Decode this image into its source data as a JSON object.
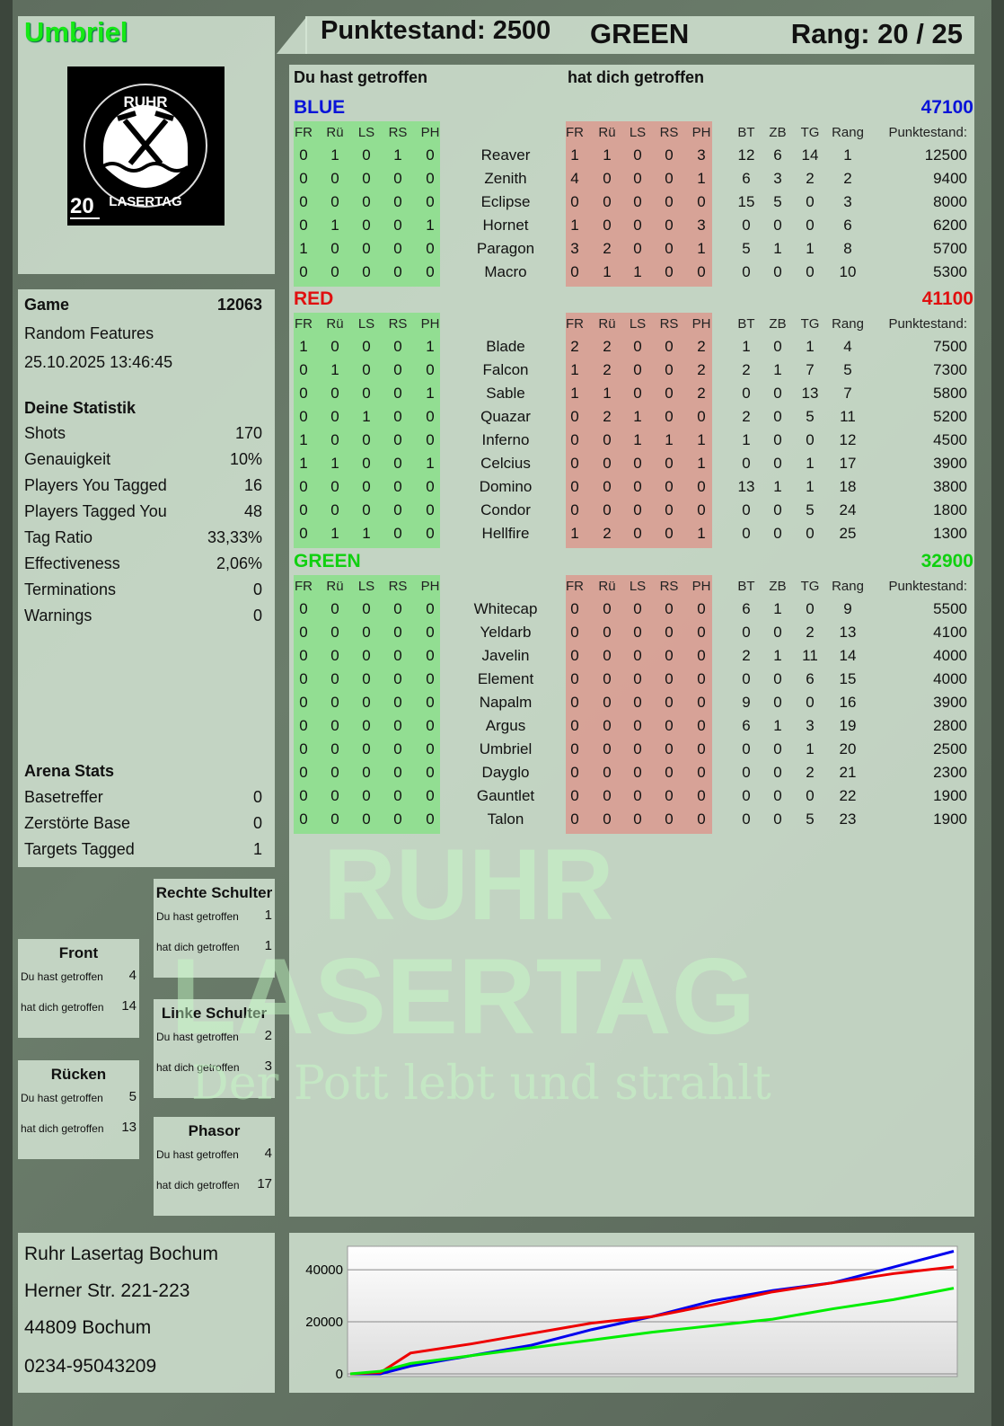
{
  "player": {
    "name": "Umbriel",
    "logo_text": [
      "RUHR",
      "LASERTAG"
    ],
    "logo_number": "20"
  },
  "header": {
    "score_label": "Punktestand: 2500",
    "team": "GREEN",
    "rank_label": "Rang: 20 / 25"
  },
  "game": {
    "label": "Game",
    "id": "12063",
    "mode": "Random Features",
    "datetime": "25.10.2025 13:46:45"
  },
  "stats": {
    "title": "Deine Statistik",
    "items": [
      {
        "label": "Shots",
        "value": "170"
      },
      {
        "label": "Genauigkeit",
        "value": "10%"
      },
      {
        "label": "Players You Tagged",
        "value": "16"
      },
      {
        "label": "Players Tagged You",
        "value": "48"
      },
      {
        "label": "Tag Ratio",
        "value": "33,33%"
      },
      {
        "label": "Effectiveness",
        "value": "2,06%"
      },
      {
        "label": "Terminations",
        "value": "0"
      },
      {
        "label": "Warnings",
        "value": "0"
      }
    ]
  },
  "arena": {
    "title": "Arena Stats",
    "items": [
      {
        "label": "Basetreffer",
        "value": "0"
      },
      {
        "label": "Zerstörte Base",
        "value": "0"
      },
      {
        "label": "Targets Tagged",
        "value": "1"
      }
    ]
  },
  "hits": {
    "you_hit_label": "Du hast getroffen",
    "hit_you_label": "hat dich getroffen",
    "zones": [
      {
        "name": "Rechte Schulter",
        "you_hit": "1",
        "hit_you": "1"
      },
      {
        "name": "Front",
        "you_hit": "4",
        "hit_you": "14"
      },
      {
        "name": "Linke Schulter",
        "you_hit": "2",
        "hit_you": "3"
      },
      {
        "name": "Rücken",
        "you_hit": "5",
        "hit_you": "13"
      },
      {
        "name": "Phasor",
        "you_hit": "4",
        "hit_you": "17"
      }
    ]
  },
  "address": [
    "Ruhr Lasertag Bochum",
    "Herner Str. 221-223",
    "44809 Bochum",
    "0234-95043209"
  ],
  "table": {
    "you_hit_header": "Du hast getroffen",
    "hit_you_header": "hat dich getroffen",
    "zone_cols": [
      "FR",
      "Rü",
      "LS",
      "RS",
      "PH"
    ],
    "stat_cols": [
      "BT",
      "ZB",
      "TG",
      "Rang"
    ],
    "score_col": "Punktestand:",
    "teams": [
      {
        "name": "BLUE",
        "total": "47100",
        "color": "#0a14d8",
        "players": [
          {
            "name": "Reaver",
            "you": [
              0,
              1,
              0,
              1,
              0
            ],
            "them": [
              1,
              1,
              0,
              0,
              3
            ],
            "stats": [
              12,
              6,
              14,
              1
            ],
            "score": 12500
          },
          {
            "name": "Zenith",
            "you": [
              0,
              0,
              0,
              0,
              0
            ],
            "them": [
              4,
              0,
              0,
              0,
              1
            ],
            "stats": [
              6,
              3,
              2,
              2
            ],
            "score": 9400
          },
          {
            "name": "Eclipse",
            "you": [
              0,
              0,
              0,
              0,
              0
            ],
            "them": [
              0,
              0,
              0,
              0,
              0
            ],
            "stats": [
              15,
              5,
              0,
              3
            ],
            "score": 8000
          },
          {
            "name": "Hornet",
            "you": [
              0,
              1,
              0,
              0,
              1
            ],
            "them": [
              1,
              0,
              0,
              0,
              3
            ],
            "stats": [
              0,
              0,
              0,
              6
            ],
            "score": 6200
          },
          {
            "name": "Paragon",
            "you": [
              1,
              0,
              0,
              0,
              0
            ],
            "them": [
              3,
              2,
              0,
              0,
              1
            ],
            "stats": [
              5,
              1,
              1,
              8
            ],
            "score": 5700
          },
          {
            "name": "Macro",
            "you": [
              0,
              0,
              0,
              0,
              0
            ],
            "them": [
              0,
              1,
              1,
              0,
              0
            ],
            "stats": [
              0,
              0,
              0,
              10
            ],
            "score": 5300
          }
        ]
      },
      {
        "name": "RED",
        "total": "41100",
        "color": "#e01010",
        "players": [
          {
            "name": "Blade",
            "you": [
              1,
              0,
              0,
              0,
              1
            ],
            "them": [
              2,
              2,
              0,
              0,
              2
            ],
            "stats": [
              1,
              0,
              1,
              4
            ],
            "score": 7500
          },
          {
            "name": "Falcon",
            "you": [
              0,
              1,
              0,
              0,
              0
            ],
            "them": [
              1,
              2,
              0,
              0,
              2
            ],
            "stats": [
              2,
              1,
              7,
              5
            ],
            "score": 7300
          },
          {
            "name": "Sable",
            "you": [
              0,
              0,
              0,
              0,
              1
            ],
            "them": [
              1,
              1,
              0,
              0,
              2
            ],
            "stats": [
              0,
              0,
              13,
              7
            ],
            "score": 5800
          },
          {
            "name": "Quazar",
            "you": [
              0,
              0,
              1,
              0,
              0
            ],
            "them": [
              0,
              2,
              1,
              0,
              0
            ],
            "stats": [
              2,
              0,
              5,
              11
            ],
            "score": 5200
          },
          {
            "name": "Inferno",
            "you": [
              1,
              0,
              0,
              0,
              0
            ],
            "them": [
              0,
              0,
              1,
              1,
              1
            ],
            "stats": [
              1,
              0,
              0,
              12
            ],
            "score": 4500
          },
          {
            "name": "Celcius",
            "you": [
              1,
              1,
              0,
              0,
              1
            ],
            "them": [
              0,
              0,
              0,
              0,
              1
            ],
            "stats": [
              0,
              0,
              1,
              17
            ],
            "score": 3900
          },
          {
            "name": "Domino",
            "you": [
              0,
              0,
              0,
              0,
              0
            ],
            "them": [
              0,
              0,
              0,
              0,
              0
            ],
            "stats": [
              13,
              1,
              1,
              18
            ],
            "score": 3800
          },
          {
            "name": "Condor",
            "you": [
              0,
              0,
              0,
              0,
              0
            ],
            "them": [
              0,
              0,
              0,
              0,
              0
            ],
            "stats": [
              0,
              0,
              5,
              24
            ],
            "score": 1800
          },
          {
            "name": "Hellfire",
            "you": [
              0,
              1,
              1,
              0,
              0
            ],
            "them": [
              1,
              2,
              0,
              0,
              1
            ],
            "stats": [
              0,
              0,
              0,
              25
            ],
            "score": 1300
          }
        ]
      },
      {
        "name": "GREEN",
        "total": "32900",
        "color": "#10d010",
        "players": [
          {
            "name": "Whitecap",
            "you": [
              0,
              0,
              0,
              0,
              0
            ],
            "them": [
              0,
              0,
              0,
              0,
              0
            ],
            "stats": [
              6,
              1,
              0,
              9
            ],
            "score": 5500
          },
          {
            "name": "Yeldarb",
            "you": [
              0,
              0,
              0,
              0,
              0
            ],
            "them": [
              0,
              0,
              0,
              0,
              0
            ],
            "stats": [
              0,
              0,
              2,
              13
            ],
            "score": 4100
          },
          {
            "name": "Javelin",
            "you": [
              0,
              0,
              0,
              0,
              0
            ],
            "them": [
              0,
              0,
              0,
              0,
              0
            ],
            "stats": [
              2,
              1,
              11,
              14
            ],
            "score": 4000
          },
          {
            "name": "Element",
            "you": [
              0,
              0,
              0,
              0,
              0
            ],
            "them": [
              0,
              0,
              0,
              0,
              0
            ],
            "stats": [
              0,
              0,
              6,
              15
            ],
            "score": 4000
          },
          {
            "name": "Napalm",
            "you": [
              0,
              0,
              0,
              0,
              0
            ],
            "them": [
              0,
              0,
              0,
              0,
              0
            ],
            "stats": [
              9,
              0,
              0,
              16
            ],
            "score": 3900
          },
          {
            "name": "Argus",
            "you": [
              0,
              0,
              0,
              0,
              0
            ],
            "them": [
              0,
              0,
              0,
              0,
              0
            ],
            "stats": [
              6,
              1,
              3,
              19
            ],
            "score": 2800
          },
          {
            "name": "Umbriel",
            "you": [
              0,
              0,
              0,
              0,
              0
            ],
            "them": [
              0,
              0,
              0,
              0,
              0
            ],
            "stats": [
              0,
              0,
              1,
              20
            ],
            "score": 2500
          },
          {
            "name": "Dayglo",
            "you": [
              0,
              0,
              0,
              0,
              0
            ],
            "them": [
              0,
              0,
              0,
              0,
              0
            ],
            "stats": [
              0,
              0,
              2,
              21
            ],
            "score": 2300
          },
          {
            "name": "Gauntlet",
            "you": [
              0,
              0,
              0,
              0,
              0
            ],
            "them": [
              0,
              0,
              0,
              0,
              0
            ],
            "stats": [
              0,
              0,
              0,
              22
            ],
            "score": 1900
          },
          {
            "name": "Talon",
            "you": [
              0,
              0,
              0,
              0,
              0
            ],
            "them": [
              0,
              0,
              0,
              0,
              0
            ],
            "stats": [
              0,
              0,
              5,
              23
            ],
            "score": 1900
          }
        ]
      }
    ]
  },
  "watermark": {
    "line1": "RUHR",
    "line2": "LASERTAG",
    "slogan": "Der Pott lebt und strahlt"
  },
  "chart_data": {
    "type": "line",
    "title": "",
    "xlabel": "",
    "ylabel": "",
    "ylim": [
      0,
      49000
    ],
    "yticks": [
      0,
      20000,
      40000
    ],
    "grid": "horizontal",
    "legend": "none",
    "x": [
      0,
      0.05,
      0.1,
      0.2,
      0.3,
      0.4,
      0.5,
      0.6,
      0.7,
      0.8,
      0.9,
      1
    ],
    "series": [
      {
        "color": "#0000ee",
        "values": [
          0,
          0,
          3000,
          7000,
          11000,
          17000,
          22000,
          28000,
          32000,
          35000,
          41000,
          47100
        ]
      },
      {
        "color": "#ee0000",
        "values": [
          0,
          500,
          8000,
          11500,
          15500,
          19500,
          22000,
          26500,
          31500,
          35000,
          38500,
          41100
        ]
      },
      {
        "color": "#00ee00",
        "values": [
          0,
          1000,
          4000,
          7000,
          10000,
          13000,
          16000,
          18500,
          21000,
          25000,
          28500,
          32900
        ]
      }
    ]
  }
}
